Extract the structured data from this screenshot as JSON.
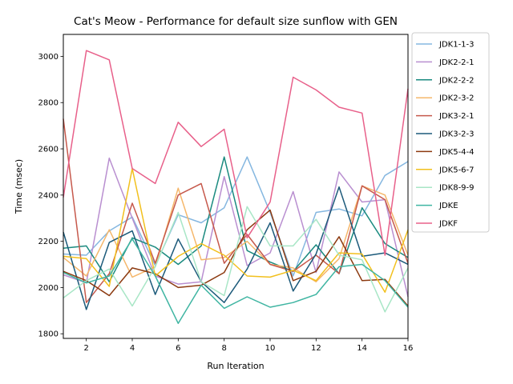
{
  "chart_data": {
    "type": "line",
    "title": "Cat's Meow - Performance for default size sunflow with GEN",
    "xlabel": "Run Iteration",
    "ylabel": "Time (msec)",
    "xlim": [
      1,
      16
    ],
    "ylim": [
      1780,
      3095
    ],
    "x": [
      1,
      2,
      3,
      4,
      5,
      6,
      7,
      8,
      9,
      10,
      11,
      12,
      13,
      14,
      15,
      16
    ],
    "xticks": [
      2,
      4,
      6,
      8,
      10,
      12,
      14,
      16
    ],
    "yticks": [
      1800,
      2000,
      2200,
      2400,
      2600,
      2800,
      3000
    ],
    "grid": false,
    "legend_position": "outside-right",
    "series": [
      {
        "name": "JDK1-1-3",
        "color": "#85b7e0",
        "values": [
          2145,
          2140,
          2245,
          2305,
          2095,
          2315,
          2280,
          2345,
          2565,
          2325,
          2050,
          2325,
          2340,
          2310,
          2485,
          2545
        ]
      },
      {
        "name": "JDK2-2-1",
        "color": "#b98fd0",
        "values": [
          2055,
          2020,
          2560,
          2300,
          2050,
          2015,
          2025,
          2480,
          2095,
          2150,
          2415,
          2065,
          2500,
          2370,
          2380,
          1960
        ]
      },
      {
        "name": "JDK2-2-2",
        "color": "#1a8a7f",
        "values": [
          2170,
          2180,
          2025,
          2215,
          2175,
          2100,
          2180,
          2565,
          2160,
          2110,
          2070,
          2185,
          2060,
          2345,
          2190,
          2130
        ]
      },
      {
        "name": "JDK2-3-2",
        "color": "#f5b76b",
        "values": [
          2130,
          2050,
          2250,
          2045,
          2090,
          2430,
          2120,
          2130,
          2200,
          2100,
          2085,
          2025,
          2125,
          2440,
          2400,
          2140
        ]
      },
      {
        "name": "JDK3-2-1",
        "color": "#c6594c",
        "values": [
          2730,
          1935,
          2060,
          2365,
          2105,
          2400,
          2450,
          2105,
          2230,
          2100,
          2070,
          2140,
          2060,
          2440,
          2380,
          2105
        ]
      },
      {
        "name": "JDK3-2-3",
        "color": "#1c5a7a",
        "values": [
          2240,
          1905,
          2195,
          2245,
          1970,
          2210,
          2025,
          1935,
          2080,
          2280,
          1985,
          2145,
          2435,
          2135,
          2150,
          2100
        ]
      },
      {
        "name": "JDK5-4-4",
        "color": "#8c3a10",
        "values": [
          2070,
          2030,
          1965,
          2085,
          2060,
          2000,
          2010,
          2065,
          2250,
          2335,
          2030,
          2070,
          2220,
          2030,
          2035,
          1920
        ]
      },
      {
        "name": "JDK5-6-7",
        "color": "#f2c01d",
        "values": [
          2135,
          2125,
          2005,
          2515,
          2050,
          2135,
          2190,
          2140,
          2050,
          2045,
          2075,
          2030,
          2150,
          2145,
          1980,
          2250
        ]
      },
      {
        "name": "JDK8-9-9",
        "color": "#a8e6c6",
        "values": [
          1955,
          2030,
          2080,
          1920,
          2090,
          2325,
          2025,
          1965,
          2350,
          2180,
          2180,
          2295,
          2140,
          2120,
          1895,
          2085
        ]
      },
      {
        "name": "JDKE",
        "color": "#3fb5a2",
        "values": [
          2065,
          2020,
          2050,
          2210,
          2050,
          1845,
          2010,
          1910,
          1960,
          1915,
          1935,
          1970,
          2090,
          2100,
          2030,
          1915
        ]
      },
      {
        "name": "JDKF",
        "color": "#e8608a",
        "values": [
          2390,
          3025,
          2985,
          2515,
          2450,
          2715,
          2610,
          2685,
          2215,
          2370,
          2910,
          2855,
          2780,
          2755,
          2140,
          2860
        ]
      }
    ]
  }
}
